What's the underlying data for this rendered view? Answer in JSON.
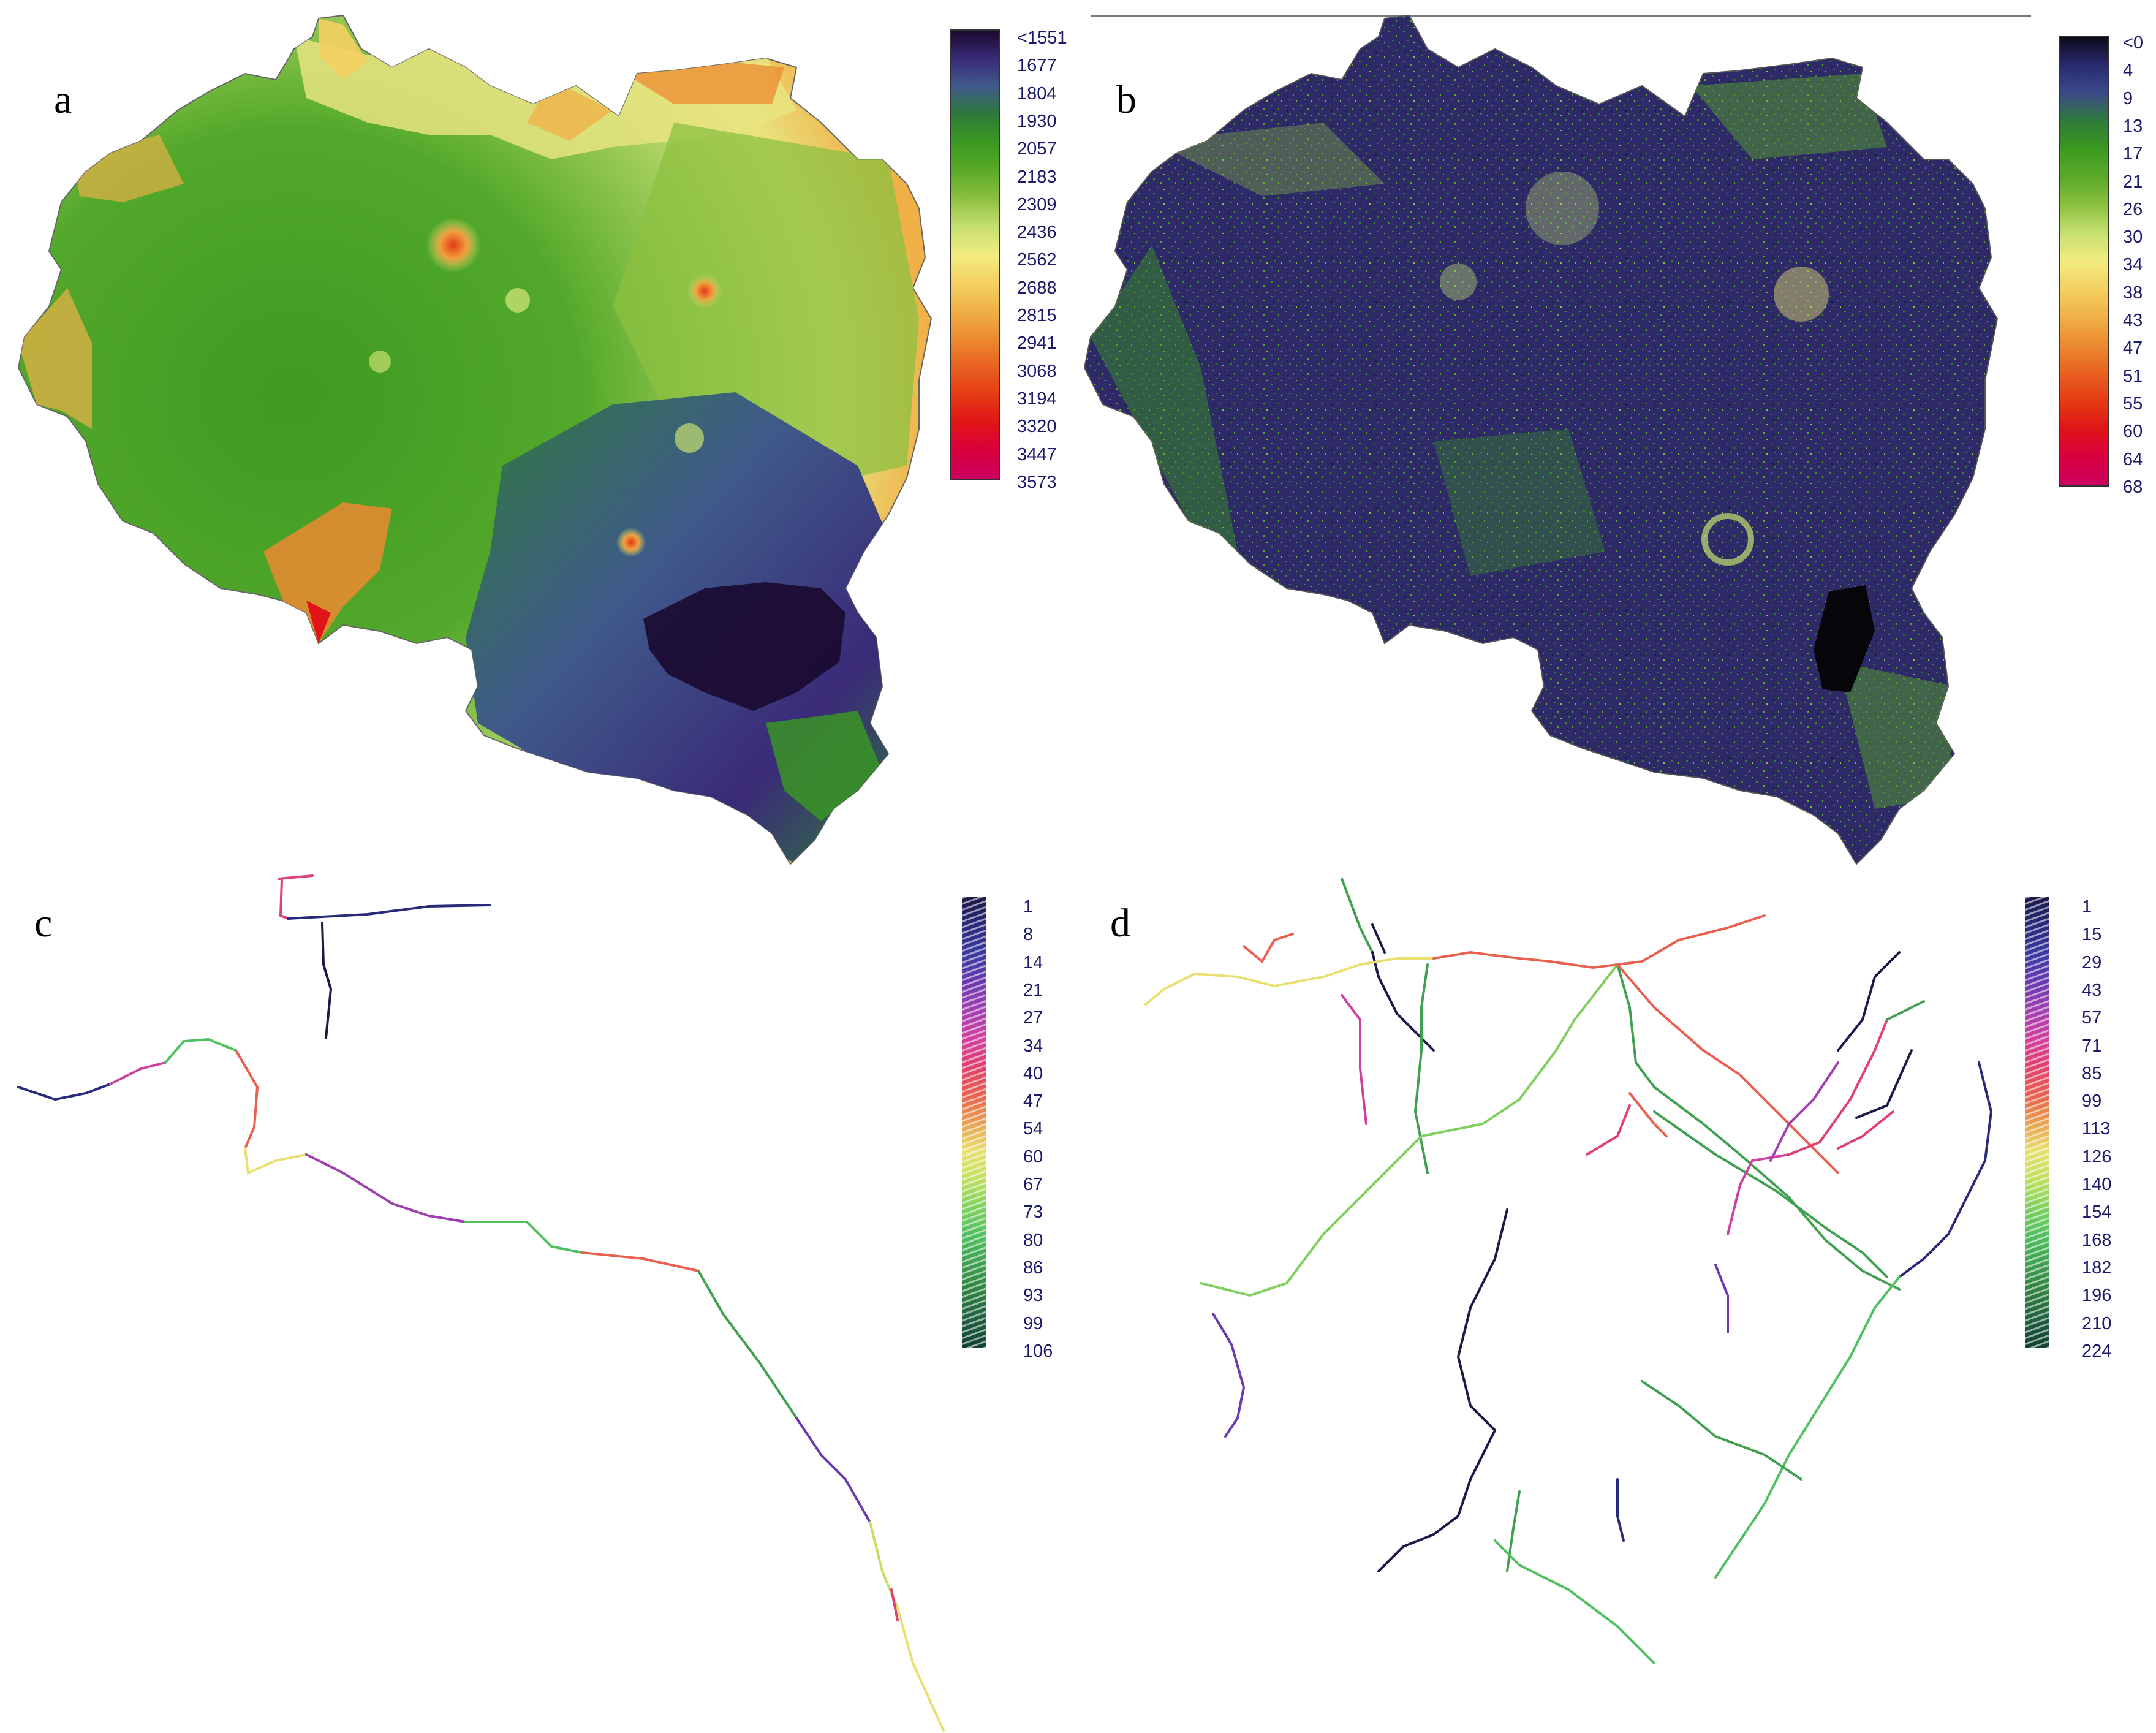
{
  "panels": {
    "a": {
      "letter": "a",
      "legend": {
        "labels": [
          "<1551",
          "1677",
          "1804",
          "1930",
          "2057",
          "2183",
          "2309",
          "2436",
          "2562",
          "2688",
          "2815",
          "2941",
          "3068",
          "3194",
          "3320",
          "3447",
          "3573"
        ],
        "colors": [
          "#1a0a30",
          "#3a2a78",
          "#3f5a8a",
          "#2f7a3a",
          "#3a9a20",
          "#5aaa28",
          "#8cc040",
          "#c6e070",
          "#f2ec80",
          "#f4d060",
          "#f0b048",
          "#ec8a30",
          "#e86020",
          "#e43a14",
          "#e01418",
          "#d80040",
          "#cc0060"
        ]
      }
    },
    "b": {
      "letter": "b",
      "legend": {
        "labels": [
          "<0",
          "4",
          "9",
          "13",
          "17",
          "21",
          "26",
          "30",
          "34",
          "38",
          "43",
          "47",
          "51",
          "55",
          "60",
          "64",
          "68"
        ],
        "colors": [
          "#0a0a18",
          "#2a2a70",
          "#3a4a8a",
          "#2f7a3a",
          "#3a9a20",
          "#5aaa28",
          "#8cc040",
          "#c6e070",
          "#f2ec80",
          "#f4d060",
          "#f0b048",
          "#ec8a30",
          "#e86020",
          "#e43a14",
          "#e01418",
          "#d80040",
          "#cc0060"
        ]
      }
    },
    "c": {
      "letter": "c",
      "legend": {
        "labels": [
          "1",
          "8",
          "14",
          "21",
          "27",
          "34",
          "40",
          "47",
          "54",
          "60",
          "67",
          "73",
          "80",
          "86",
          "93",
          "99",
          "106"
        ],
        "colors": [
          "#1a1a4a",
          "#2a2a7a",
          "#3a3aa0",
          "#6a3ab0",
          "#a040b0",
          "#d040a0",
          "#e04070",
          "#e86050",
          "#e8a050",
          "#e8e070",
          "#c0e060",
          "#80d060",
          "#50c060",
          "#40a050",
          "#308040",
          "#206040",
          "#104030"
        ]
      }
    },
    "d": {
      "letter": "d",
      "legend": {
        "labels": [
          "1",
          "15",
          "29",
          "43",
          "57",
          "71",
          "85",
          "99",
          "113",
          "126",
          "140",
          "154",
          "168",
          "182",
          "196",
          "210",
          "224"
        ],
        "colors": [
          "#1a1a4a",
          "#2a2a7a",
          "#3a3aa0",
          "#6a3ab0",
          "#a040b0",
          "#d040a0",
          "#e04070",
          "#e86050",
          "#e8a050",
          "#e8e070",
          "#c0e060",
          "#80d060",
          "#50c060",
          "#40a050",
          "#308040",
          "#206040",
          "#104030"
        ]
      }
    }
  }
}
